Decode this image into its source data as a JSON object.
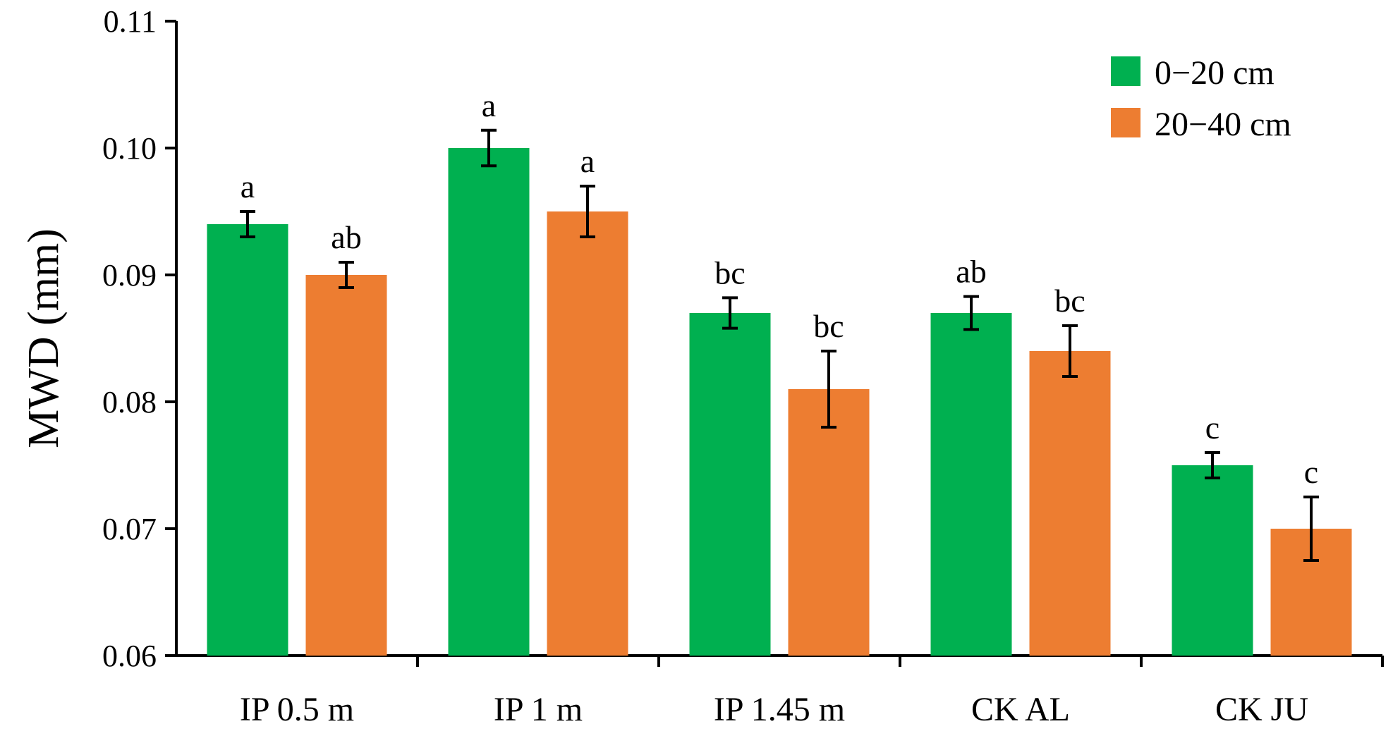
{
  "chart_data": {
    "type": "bar",
    "title": "",
    "xlabel": "",
    "ylabel": "MWD (mm)",
    "ylim": [
      0.06,
      0.11
    ],
    "yticks": [
      "0.06",
      "0.07",
      "0.08",
      "0.09",
      "0.10",
      "0.11"
    ],
    "grid": false,
    "legend_position": "top-right",
    "categories": [
      "IP 0.5 m",
      "IP 1 m",
      "IP 1.45 m",
      "CK AL",
      "CK JU"
    ],
    "series": [
      {
        "name": "0−20 cm",
        "color": "#00b050",
        "values": [
          0.094,
          0.1,
          0.087,
          0.087,
          0.075
        ],
        "errors": [
          0.001,
          0.0014,
          0.0012,
          0.0013,
          0.001
        ],
        "labels": [
          "a",
          "a",
          "bc",
          "ab",
          "c"
        ]
      },
      {
        "name": "20−40 cm",
        "color": "#ed7d31",
        "values": [
          0.09,
          0.095,
          0.081,
          0.084,
          0.07
        ],
        "errors": [
          0.001,
          0.002,
          0.003,
          0.002,
          0.0025
        ],
        "labels": [
          "ab",
          "a",
          "bc",
          "bc",
          "c"
        ]
      }
    ]
  }
}
